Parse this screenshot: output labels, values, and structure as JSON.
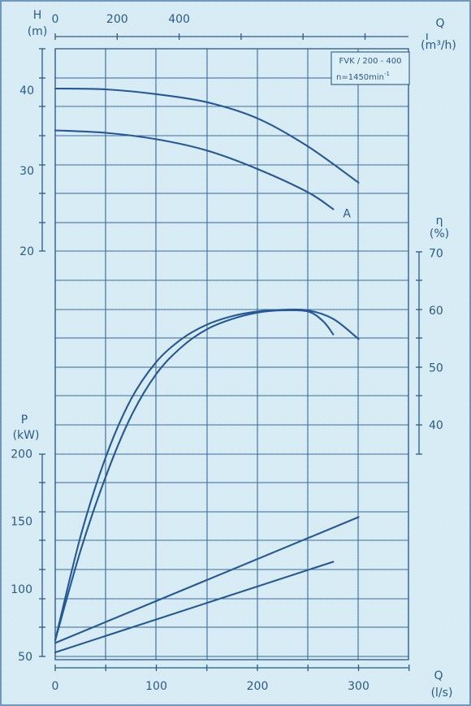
{
  "chart_data": {
    "type": "line",
    "annotation": {
      "model": "FVK / 200 - 400",
      "speed": "n=1450min",
      "speed_exp": "-1"
    },
    "curve_marker": "A",
    "x_bottom": {
      "label": "Q",
      "unit": "(l/s)",
      "range": [
        0,
        350
      ],
      "ticks": [
        0,
        100,
        200,
        300
      ]
    },
    "x_top": {
      "label": "Q",
      "unit": "(m³/h)",
      "range": [
        0,
        1260
      ],
      "ticks": [
        0,
        200,
        400
      ]
    },
    "y_head": {
      "label": "H",
      "unit": "(m)",
      "ticks": [
        20,
        30,
        40
      ]
    },
    "y_eff": {
      "label": "η",
      "unit": "(%)",
      "ticks": [
        40,
        50,
        60,
        70
      ]
    },
    "y_power": {
      "label": "P",
      "unit": "(kW)",
      "ticks": [
        50,
        100,
        150,
        200
      ]
    },
    "series": [
      {
        "group": "head",
        "x": [
          0,
          50,
          100,
          150,
          200,
          250,
          300
        ],
        "y": [
          40.2,
          40.1,
          39.5,
          38.5,
          36.5,
          33.0,
          28.5
        ]
      },
      {
        "group": "head",
        "marker": "A",
        "x": [
          0,
          50,
          100,
          150,
          200,
          250,
          275
        ],
        "y": [
          35.0,
          34.7,
          33.9,
          32.5,
          30.2,
          27.3,
          25.2
        ]
      },
      {
        "group": "efficiency",
        "x": [
          0,
          25,
          50,
          75,
          100,
          125,
          150,
          175,
          200,
          225,
          250,
          275,
          300
        ],
        "y": [
          0,
          20.5,
          34.4,
          44.5,
          51.0,
          55.0,
          57.5,
          59.0,
          59.8,
          60.1,
          60.0,
          58.5,
          55.0
        ]
      },
      {
        "group": "efficiency",
        "x": [
          0,
          25,
          50,
          75,
          100,
          125,
          150,
          175,
          200,
          225,
          250,
          265,
          275
        ],
        "y": [
          0,
          18.0,
          31.0,
          41.5,
          48.9,
          53.6,
          56.7,
          58.5,
          59.6,
          60.0,
          59.8,
          58.1,
          55.8
        ]
      },
      {
        "group": "power",
        "x": [
          0,
          300
        ],
        "y": [
          60,
          153
        ]
      },
      {
        "group": "power",
        "x": [
          0,
          275
        ],
        "y": [
          53,
          120
        ]
      }
    ]
  }
}
